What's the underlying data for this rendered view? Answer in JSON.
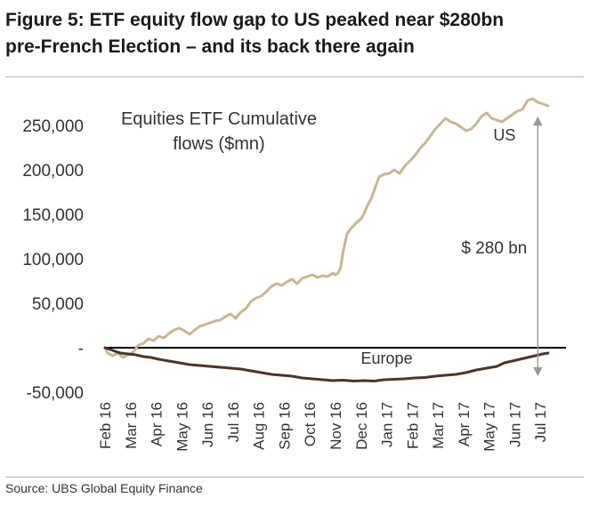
{
  "figure": {
    "title_line1": "Figure 5: ETF equity flow gap to US peaked near $280bn",
    "title_line2": "pre-French Election – and its back there again",
    "source": "Source:  UBS Global Equity Finance"
  },
  "chart_data": {
    "type": "line",
    "title_line1": "Equities ETF Cumulative",
    "title_line2": "flows ($mn)",
    "xlabel": "",
    "ylabel": "",
    "ylim": [
      -50000,
      285000
    ],
    "yticks": [
      {
        "value": 250000,
        "label": "250,000"
      },
      {
        "value": 200000,
        "label": "200,000"
      },
      {
        "value": 150000,
        "label": "150,000"
      },
      {
        "value": 100000,
        "label": "100,000"
      },
      {
        "value": 50000,
        "label": "50,000"
      },
      {
        "value": 0,
        "label": "-"
      },
      {
        "value": -50000,
        "label": "-50,000"
      }
    ],
    "xlim": [
      0,
      18
    ],
    "xticks": [
      {
        "value": 0,
        "label": "Feb 16"
      },
      {
        "value": 1,
        "label": "Mar 16"
      },
      {
        "value": 2,
        "label": "Apr 16"
      },
      {
        "value": 3,
        "label": "May 16"
      },
      {
        "value": 4,
        "label": "Jun 16"
      },
      {
        "value": 5,
        "label": "Jul 16"
      },
      {
        "value": 6,
        "label": "Aug 16"
      },
      {
        "value": 7,
        "label": "Sep 16"
      },
      {
        "value": 8,
        "label": "Oct 16"
      },
      {
        "value": 9,
        "label": "Nov 16"
      },
      {
        "value": 10,
        "label": "Dec 16"
      },
      {
        "value": 11,
        "label": "Jan 17"
      },
      {
        "value": 12,
        "label": "Feb 17"
      },
      {
        "value": 13,
        "label": "Mar 17"
      },
      {
        "value": 14,
        "label": "Apr 17"
      },
      {
        "value": 15,
        "label": "May 17"
      },
      {
        "value": 16,
        "label": "Jun 17"
      },
      {
        "value": 17,
        "label": "Jul 17"
      }
    ],
    "series": [
      {
        "name": "US",
        "color": "#c8b594",
        "points": [
          [
            0,
            0
          ],
          [
            0.1,
            -6000
          ],
          [
            0.3,
            -9000
          ],
          [
            0.5,
            -6000
          ],
          [
            0.7,
            -11000
          ],
          [
            0.9,
            -8000
          ],
          [
            1.1,
            -5000
          ],
          [
            1.3,
            3000
          ],
          [
            1.5,
            5000
          ],
          [
            1.7,
            10000
          ],
          [
            1.9,
            8000
          ],
          [
            2.1,
            13000
          ],
          [
            2.3,
            11000
          ],
          [
            2.5,
            16000
          ],
          [
            2.7,
            20000
          ],
          [
            2.9,
            22000
          ],
          [
            3.1,
            19000
          ],
          [
            3.3,
            15000
          ],
          [
            3.5,
            20000
          ],
          [
            3.7,
            24000
          ],
          [
            3.9,
            26000
          ],
          [
            4.1,
            28000
          ],
          [
            4.3,
            30000
          ],
          [
            4.5,
            31000
          ],
          [
            4.7,
            35000
          ],
          [
            4.9,
            38000
          ],
          [
            5.1,
            33000
          ],
          [
            5.3,
            40000
          ],
          [
            5.5,
            44000
          ],
          [
            5.7,
            52000
          ],
          [
            5.9,
            56000
          ],
          [
            6.1,
            58000
          ],
          [
            6.3,
            63000
          ],
          [
            6.5,
            69000
          ],
          [
            6.7,
            72000
          ],
          [
            6.9,
            70000
          ],
          [
            7.1,
            74000
          ],
          [
            7.3,
            77000
          ],
          [
            7.5,
            72000
          ],
          [
            7.7,
            78000
          ],
          [
            7.9,
            80000
          ],
          [
            8.1,
            82000
          ],
          [
            8.3,
            79000
          ],
          [
            8.5,
            81000
          ],
          [
            8.7,
            80000
          ],
          [
            8.9,
            84000
          ],
          [
            9.0,
            82000
          ],
          [
            9.1,
            84000
          ],
          [
            9.2,
            90000
          ],
          [
            9.3,
            108000
          ],
          [
            9.45,
            128000
          ],
          [
            9.6,
            134000
          ],
          [
            9.8,
            140000
          ],
          [
            10.0,
            145000
          ],
          [
            10.1,
            150000
          ],
          [
            10.25,
            160000
          ],
          [
            10.4,
            168000
          ],
          [
            10.55,
            180000
          ],
          [
            10.7,
            192000
          ],
          [
            10.9,
            195000
          ],
          [
            11.1,
            196000
          ],
          [
            11.3,
            200000
          ],
          [
            11.5,
            196000
          ],
          [
            11.7,
            204000
          ],
          [
            11.9,
            210000
          ],
          [
            12.1,
            216000
          ],
          [
            12.3,
            224000
          ],
          [
            12.5,
            230000
          ],
          [
            12.7,
            238000
          ],
          [
            12.9,
            246000
          ],
          [
            13.1,
            252000
          ],
          [
            13.3,
            258000
          ],
          [
            13.5,
            254000
          ],
          [
            13.7,
            252000
          ],
          [
            13.9,
            248000
          ],
          [
            14.1,
            244000
          ],
          [
            14.3,
            246000
          ],
          [
            14.5,
            252000
          ],
          [
            14.7,
            260000
          ],
          [
            14.9,
            264000
          ],
          [
            15.1,
            258000
          ],
          [
            15.3,
            256000
          ],
          [
            15.5,
            254000
          ],
          [
            15.7,
            258000
          ],
          [
            15.9,
            262000
          ],
          [
            16.1,
            266000
          ],
          [
            16.3,
            268000
          ],
          [
            16.5,
            278000
          ],
          [
            16.7,
            280000
          ],
          [
            16.9,
            276000
          ],
          [
            17.1,
            274000
          ],
          [
            17.3,
            272000
          ]
        ]
      },
      {
        "name": "Europe",
        "color": "#4b3528",
        "points": [
          [
            0,
            0
          ],
          [
            0.3,
            -3000
          ],
          [
            0.6,
            -6000
          ],
          [
            0.9,
            -7000
          ],
          [
            1.2,
            -8000
          ],
          [
            1.5,
            -10000
          ],
          [
            1.8,
            -11000
          ],
          [
            2.1,
            -13000
          ],
          [
            2.5,
            -15000
          ],
          [
            2.9,
            -17000
          ],
          [
            3.3,
            -19000
          ],
          [
            3.7,
            -20000
          ],
          [
            4.1,
            -21000
          ],
          [
            4.5,
            -22000
          ],
          [
            4.9,
            -23000
          ],
          [
            5.3,
            -24000
          ],
          [
            5.7,
            -26000
          ],
          [
            6.1,
            -28000
          ],
          [
            6.5,
            -30000
          ],
          [
            6.9,
            -31000
          ],
          [
            7.3,
            -32000
          ],
          [
            7.7,
            -34000
          ],
          [
            8.1,
            -35000
          ],
          [
            8.5,
            -36000
          ],
          [
            8.9,
            -37000
          ],
          [
            9.3,
            -36500
          ],
          [
            9.7,
            -37500
          ],
          [
            10.1,
            -37000
          ],
          [
            10.5,
            -37500
          ],
          [
            10.9,
            -36000
          ],
          [
            11.3,
            -35500
          ],
          [
            11.7,
            -35000
          ],
          [
            12.1,
            -34000
          ],
          [
            12.5,
            -33500
          ],
          [
            12.9,
            -32000
          ],
          [
            13.3,
            -31000
          ],
          [
            13.7,
            -30000
          ],
          [
            14.1,
            -28000
          ],
          [
            14.5,
            -25000
          ],
          [
            14.9,
            -23000
          ],
          [
            15.3,
            -21000
          ],
          [
            15.6,
            -17000
          ],
          [
            15.9,
            -15000
          ],
          [
            16.2,
            -13000
          ],
          [
            16.5,
            -11000
          ],
          [
            16.8,
            -9000
          ],
          [
            17.1,
            -7000
          ],
          [
            17.3,
            -6000
          ]
        ]
      }
    ],
    "annotations": [
      {
        "text": "US",
        "series": "US",
        "x": 15.6,
        "y": 233000
      },
      {
        "text": "Europe",
        "series": "Europe",
        "x": 11.0,
        "y": -18000
      },
      {
        "text": "$ 280 bn",
        "type": "gap-arrow",
        "x": 16.9,
        "y_top": 255000,
        "y_bottom": -27000,
        "label_y": 106000
      }
    ]
  }
}
